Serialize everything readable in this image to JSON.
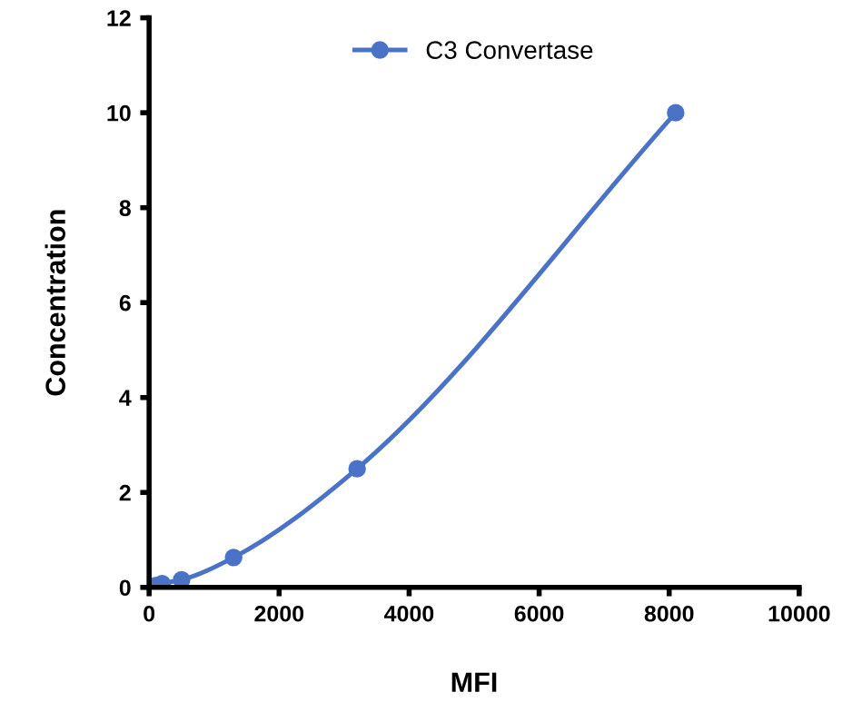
{
  "chart_data": {
    "type": "line",
    "xlabel": "MFI",
    "ylabel": "Concentration",
    "x": [
      20,
      60,
      110,
      200,
      500,
      1300,
      3200,
      8100
    ],
    "series": [
      {
        "name": "C3 Convertase",
        "color": "#4a72c6",
        "values": [
          0,
          0.02,
          0.04,
          0.08,
          0.16,
          0.63,
          2.5,
          10
        ]
      }
    ],
    "xlim": [
      0,
      10000
    ],
    "xticks": [
      0,
      2000,
      4000,
      6000,
      8000,
      10000
    ],
    "ylim": [
      0,
      12
    ],
    "yticks": [
      0,
      2,
      4,
      6,
      8,
      10,
      12
    ],
    "marker": "circle",
    "line_style": "solid",
    "legend": "top",
    "grid": false
  }
}
